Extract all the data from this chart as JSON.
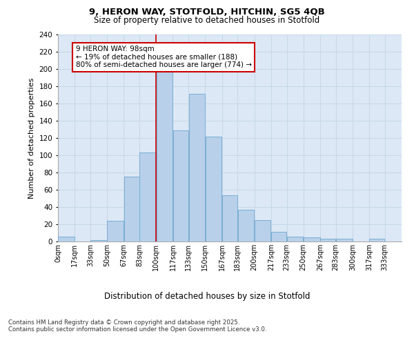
{
  "title_line1": "9, HERON WAY, STOTFOLD, HITCHIN, SG5 4QB",
  "title_line2": "Size of property relative to detached houses in Stotfold",
  "xlabel": "Distribution of detached houses by size in Stotfold",
  "ylabel": "Number of detached properties",
  "bar_labels": [
    "0sqm",
    "17sqm",
    "33sqm",
    "50sqm",
    "67sqm",
    "83sqm",
    "100sqm",
    "117sqm",
    "133sqm",
    "150sqm",
    "167sqm",
    "183sqm",
    "200sqm",
    "217sqm",
    "233sqm",
    "250sqm",
    "267sqm",
    "283sqm",
    "300sqm",
    "317sqm",
    "333sqm"
  ],
  "bar_values": [
    6,
    0,
    2,
    24,
    75,
    103,
    200,
    129,
    171,
    122,
    54,
    37,
    25,
    11,
    6,
    5,
    3,
    3,
    0,
    3,
    0
  ],
  "bar_color": "#b8d0ea",
  "bar_edgecolor": "#7aadd4",
  "grid_color": "#c8d8e8",
  "bg_color": "#dce8f5",
  "annotation_text": "9 HERON WAY: 98sqm\n← 19% of detached houses are smaller (188)\n80% of semi-detached houses are larger (774) →",
  "annotation_box_color": "#ffffff",
  "annotation_box_edgecolor": "#cc0000",
  "vline_color": "#cc0000",
  "ylim": [
    0,
    240
  ],
  "yticks": [
    0,
    20,
    40,
    60,
    80,
    100,
    120,
    140,
    160,
    180,
    200,
    220,
    240
  ],
  "footer": "Contains HM Land Registry data © Crown copyright and database right 2025.\nContains public sector information licensed under the Open Government Licence v3.0.",
  "bin_edges": [
    0,
    17,
    33,
    50,
    67,
    83,
    100,
    117,
    133,
    150,
    167,
    183,
    200,
    217,
    233,
    250,
    267,
    283,
    300,
    317,
    333,
    350
  ]
}
